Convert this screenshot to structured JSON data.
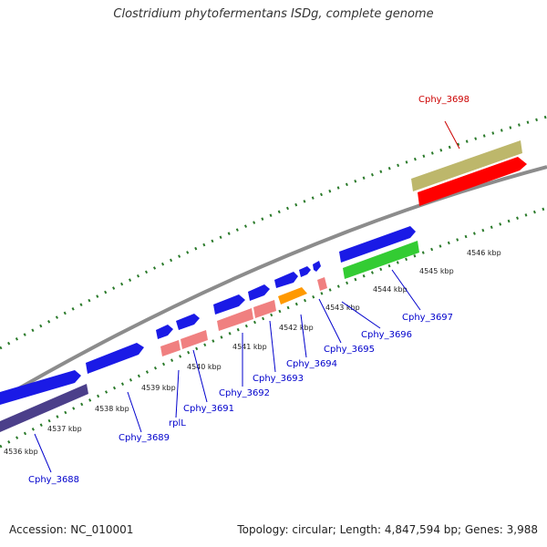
{
  "title": "Clostridium phytofermentans ISDg, complete genome",
  "footer": {
    "accession": "Accession: NC_010001",
    "topology": "Topology: circular; Length: 4,847,594 bp; Genes: 3,988"
  },
  "colors": {
    "backbone": "#8c8c8c",
    "tick": "#2a7a2a",
    "gene_blue": "#1a1ae6",
    "gene_dark_blue": "#4b3f8a",
    "gene_pink": "#f08080",
    "gene_orange": "#ff9900",
    "gene_olive": "#bdb76b",
    "gene_red": "#ff0000",
    "gene_green": "#33cc33",
    "label_blue": "#0000cc",
    "label_red": "#cc0000"
  },
  "kbp_ticks": [
    "4536 kbp",
    "4537 kbp",
    "4538 kbp",
    "4539 kbp",
    "4540 kbp",
    "4541 kbp",
    "4542 kbp",
    "4543 kbp",
    "4544 kbp",
    "4545 kbp",
    "4546 kbp"
  ],
  "gene_labels": [
    "Cphy_3688",
    "Cphy_3689",
    "rplL",
    "Cphy_3691",
    "Cphy_3692",
    "Cphy_3693",
    "Cphy_3694",
    "Cphy_3695",
    "Cphy_3696",
    "Cphy_3697",
    "Cphy_3698"
  ]
}
